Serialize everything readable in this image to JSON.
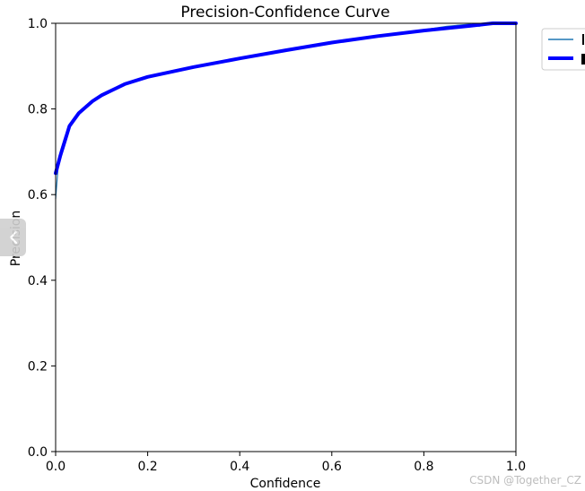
{
  "chart_data": {
    "type": "line",
    "title": "Precision-Confidence Curve",
    "xlabel": "Confidence",
    "ylabel": "Precision",
    "xlim": [
      0.0,
      1.0
    ],
    "ylim": [
      0.0,
      1.0
    ],
    "x_ticks": [
      "0.0",
      "0.2",
      "0.4",
      "0.6",
      "0.8",
      "1.0"
    ],
    "y_ticks": [
      "0.0",
      "0.2",
      "0.4",
      "0.6",
      "0.8",
      "1.0"
    ],
    "grid": false,
    "legend_position": "upper-right-outside",
    "series": [
      {
        "color": "#1f77b4",
        "line": "thin",
        "x": [
          0.0,
          0.005,
          0.01,
          0.02,
          0.03,
          0.05,
          0.08,
          0.1,
          0.15,
          0.2,
          0.3,
          0.4,
          0.5,
          0.6,
          0.7,
          0.8,
          0.85,
          0.9,
          0.92,
          0.95,
          1.0
        ],
        "y": [
          0.59,
          0.66,
          0.7,
          0.735,
          0.76,
          0.79,
          0.82,
          0.835,
          0.86,
          0.875,
          0.898,
          0.918,
          0.937,
          0.955,
          0.97,
          0.985,
          0.993,
          0.998,
          0.993,
          1.0,
          1.0
        ]
      },
      {
        "color": "#0000ff",
        "line": "thick",
        "x": [
          0.0,
          0.005,
          0.01,
          0.02,
          0.03,
          0.05,
          0.08,
          0.1,
          0.15,
          0.2,
          0.3,
          0.4,
          0.5,
          0.6,
          0.7,
          0.8,
          0.9,
          0.95,
          1.0
        ],
        "y": [
          0.65,
          0.67,
          0.69,
          0.725,
          0.76,
          0.79,
          0.818,
          0.832,
          0.858,
          0.875,
          0.898,
          0.918,
          0.937,
          0.955,
          0.97,
          0.983,
          0.994,
          1.0,
          1.0
        ]
      }
    ]
  },
  "watermark": "CSDN @Together_CZ",
  "ui": {
    "side_handle_icon": "chevron-left-icon"
  }
}
